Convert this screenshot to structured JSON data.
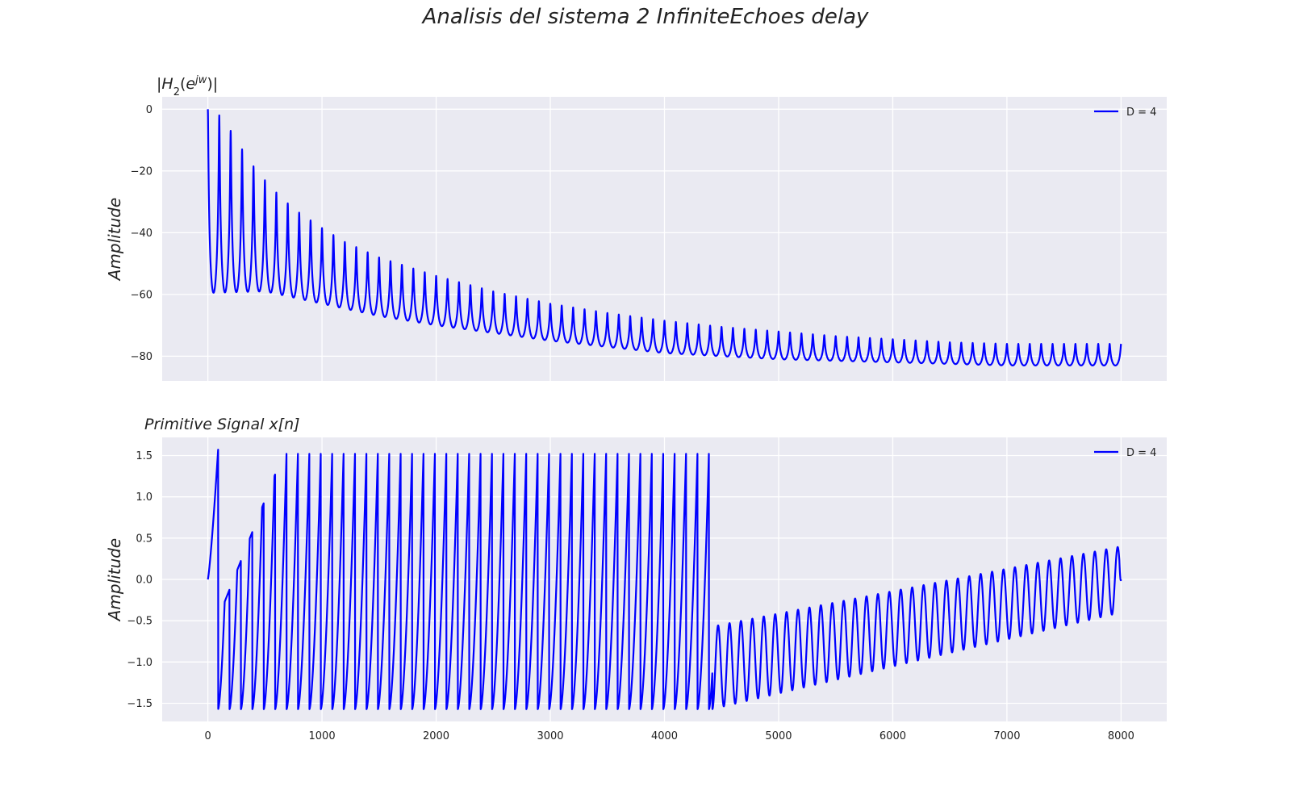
{
  "figure": {
    "title": "Analisis del sistema 2 InfiniteEchoes delay"
  },
  "chart_data": [
    {
      "type": "line",
      "title": "|H₂(e^{jw})|",
      "ylabel": "Amplitude",
      "xlabel": "",
      "xlim": [
        -400,
        8400
      ],
      "ylim": [
        -88,
        4
      ],
      "yticks": [
        0,
        -20,
        -40,
        -60,
        -80
      ],
      "ytick_labels": [
        "0",
        "−20",
        "−40",
        "−60",
        "−80"
      ],
      "xticks": [
        0,
        1000,
        2000,
        3000,
        4000,
        5000,
        6000,
        7000,
        8000
      ],
      "show_xtick_labels": false,
      "grid": true,
      "legend": {
        "position": "top-right",
        "entries": [
          "D = 4"
        ]
      },
      "series": [
        {
          "name": "D = 4",
          "color": "#0000ff",
          "description": "comb magnitude response: 80 periodic peaks every 100 samples decaying from 0 toward about -76, valleys decaying from -59.5 toward about -83",
          "x_range": [
            0,
            8000
          ],
          "period": 100,
          "peaks": [
            [
              0,
              0
            ],
            [
              100,
              -2
            ],
            [
              200,
              -7
            ],
            [
              300,
              -13
            ],
            [
              400,
              -18.5
            ],
            [
              500,
              -23
            ],
            [
              600,
              -27
            ],
            [
              700,
              -30.5
            ],
            [
              800,
              -33.5
            ],
            [
              900,
              -36
            ],
            [
              1000,
              -38.5
            ],
            [
              1200,
              -43
            ],
            [
              1500,
              -48
            ],
            [
              2000,
              -54
            ],
            [
              2500,
              -59
            ],
            [
              3000,
              -63
            ],
            [
              3500,
              -66
            ],
            [
              4000,
              -68.5
            ],
            [
              4500,
              -70.5
            ],
            [
              5000,
              -72
            ],
            [
              5500,
              -73.5
            ],
            [
              6000,
              -74.5
            ],
            [
              6500,
              -75.5
            ],
            [
              7000,
              -76
            ],
            [
              8000,
              -76
            ]
          ],
          "valleys": [
            [
              0,
              -59.5
            ],
            [
              500,
              -59
            ],
            [
              1000,
              -63
            ],
            [
              1500,
              -67
            ],
            [
              2000,
              -70
            ],
            [
              2500,
              -72.5
            ],
            [
              3000,
              -75
            ],
            [
              3500,
              -77
            ],
            [
              4000,
              -79
            ],
            [
              4500,
              -80
            ],
            [
              5000,
              -81
            ],
            [
              6000,
              -82
            ],
            [
              7000,
              -83
            ],
            [
              8000,
              -83
            ]
          ]
        }
      ]
    },
    {
      "type": "line",
      "title": "Primitive Signal x[n]",
      "ylabel": "Amplitude",
      "xlabel": "",
      "xlim": [
        -400,
        8400
      ],
      "ylim": [
        -1.72,
        1.72
      ],
      "yticks": [
        1.5,
        1.0,
        0.5,
        0.0,
        -0.5,
        -1.0,
        -1.5
      ],
      "ytick_labels": [
        "1.5",
        "1.0",
        "0.5",
        "0.0",
        "−0.5",
        "−1.0",
        "−1.5"
      ],
      "xticks": [
        0,
        1000,
        2000,
        3000,
        4000,
        5000,
        6000,
        7000,
        8000
      ],
      "xtick_labels": [
        "0",
        "1000",
        "2000",
        "3000",
        "4000",
        "5000",
        "6000",
        "7000",
        "8000"
      ],
      "grid": true,
      "legend": {
        "position": "top-right",
        "entries": [
          "D = 4"
        ]
      },
      "series": [
        {
          "name": "D = 4",
          "color": "#0000ff",
          "description": "wrapped-phase style signal: rises from 0 to 1.57 at n=90, then oscillates between ±1.57 with period 100 up to n≈4420, then smooth oscillation with lower envelope rising from -1.57 to -0.4 and upper envelope from -0.57 to 0.4 by n=8000, ending at 0",
          "x_range": [
            0,
            8000
          ],
          "period": 100,
          "wrap_until": 4420,
          "upper_envelope_after_wrap": [
            [
              4420,
              -0.57
            ],
            [
              8000,
              0.4
            ]
          ],
          "lower_envelope_after_wrap": [
            [
              4420,
              -1.57
            ],
            [
              8000,
              -0.4
            ]
          ],
          "endpoints": [
            [
              0,
              0.0
            ],
            [
              8000,
              0.0
            ]
          ]
        }
      ]
    }
  ]
}
